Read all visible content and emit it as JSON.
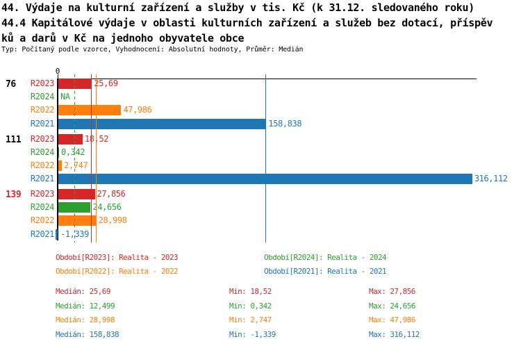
{
  "title": {
    "line1": "44. Výdaje na kulturní zařízení a služby v tis. Kč (k 31.12. sledovaného roku)",
    "line2": "44.4 Kapitálové výdaje v oblasti kulturních zařízení a služeb bez dotací, příspěv",
    "line3": "ků a darů v Kč na jednoho obyvatele obce",
    "subtitle": "Typ: Počítaný podle vzorce, Vyhodnocení: Absolutní hodnoty, Průměr: Medián"
  },
  "chart_data": {
    "type": "bar",
    "orientation": "horizontal",
    "x_axis": {
      "zero_label": "0",
      "xlim": [
        0,
        316.112
      ],
      "grid": false
    },
    "series_order": [
      "R2023",
      "R2024",
      "R2022",
      "R2021"
    ],
    "series_colors": {
      "R2023": "#d62728",
      "R2024": "#2ca02c",
      "R2022": "#ff7f0e",
      "R2021": "#1f77b4"
    },
    "groups": [
      {
        "label": "76",
        "label_color": "#000000",
        "bars": [
          {
            "series": "R2023",
            "value": 25.69,
            "label": "25,69"
          },
          {
            "series": "R2024",
            "value": null,
            "label": "NA"
          },
          {
            "series": "R2022",
            "value": 47.986,
            "label": "47,986"
          },
          {
            "series": "R2021",
            "value": 158.838,
            "label": "158,838"
          }
        ]
      },
      {
        "label": "111",
        "label_color": "#000000",
        "bars": [
          {
            "series": "R2023",
            "value": 18.52,
            "label": "18,52"
          },
          {
            "series": "R2024",
            "value": 0.342,
            "label": "0,342"
          },
          {
            "series": "R2022",
            "value": 2.747,
            "label": "2,747"
          },
          {
            "series": "R2021",
            "value": 316.112,
            "label": "316,112"
          }
        ]
      },
      {
        "label": "139",
        "label_color": "#d62728",
        "bars": [
          {
            "series": "R2023",
            "value": 27.856,
            "label": "27,856"
          },
          {
            "series": "R2024",
            "value": 24.656,
            "label": "24,656"
          },
          {
            "series": "R2022",
            "value": 28.998,
            "label": "28,998"
          },
          {
            "series": "R2021",
            "value": -1.339,
            "label": "-1,339"
          }
        ]
      }
    ],
    "median_lines": [
      {
        "series": "R2023",
        "value": 25.69,
        "style": "solid"
      },
      {
        "series": "R2024",
        "value": 12.499,
        "style": "dashed"
      },
      {
        "series": "R2022",
        "value": 28.998,
        "style": "solid"
      },
      {
        "series": "R2021",
        "value": 158.838,
        "style": "solid"
      }
    ]
  },
  "legend": {
    "items": [
      {
        "series": "R2023",
        "text": "Období[R2023]: Realita - 2023",
        "color": "#d62728",
        "row": 0,
        "col": 0
      },
      {
        "series": "R2024",
        "text": "Období[R2024]: Realita - 2024",
        "color": "#2ca02c",
        "row": 0,
        "col": 1
      },
      {
        "series": "R2022",
        "text": "Období[R2022]: Realita - 2022",
        "color": "#ff7f0e",
        "row": 1,
        "col": 0
      },
      {
        "series": "R2021",
        "text": "Období[R2021]: Realita - 2021",
        "color": "#1f77b4",
        "row": 1,
        "col": 1
      }
    ]
  },
  "stats": {
    "rows": [
      {
        "series": "R2023",
        "color": "#d62728",
        "median": "Medián: 25,69",
        "min": "Min: 18,52",
        "max": "Max: 27,856"
      },
      {
        "series": "R2024",
        "color": "#2ca02c",
        "median": "Medián: 12,499",
        "min": "Min: 0,342",
        "max": "Max: 24,656"
      },
      {
        "series": "R2022",
        "color": "#ff7f0e",
        "median": "Medián: 28,998",
        "min": "Min: 2,747",
        "max": "Max: 47,986"
      },
      {
        "series": "R2021",
        "color": "#1f77b4",
        "median": "Medián: 158,838",
        "min": "Min: -1,339",
        "max": "Max: 316,112"
      }
    ]
  }
}
